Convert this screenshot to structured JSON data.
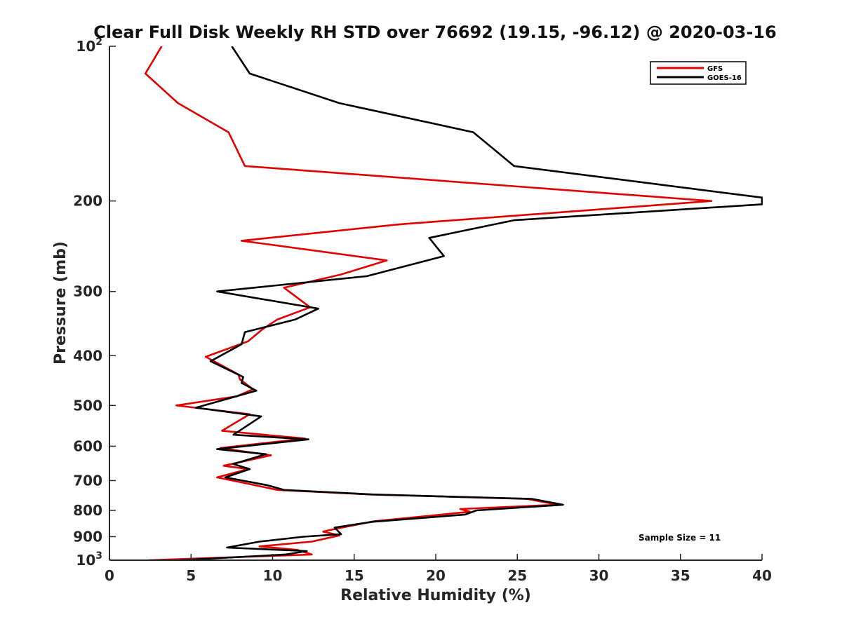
{
  "chart_data": {
    "type": "line",
    "title": "Clear Full Disk Weekly RH STD over 76692 (19.15, -96.12) @ 2020-03-16",
    "xlabel": "Relative Humidity (%)",
    "ylabel": "Pressure (mb)",
    "xlim": [
      0,
      40
    ],
    "ylim": [
      100,
      1000
    ],
    "yscale": "log",
    "y_reversed": true,
    "x_ticks": [
      0,
      5,
      10,
      15,
      20,
      25,
      30,
      35,
      40
    ],
    "x_tick_labels": [
      "0",
      "5",
      "10",
      "15",
      "20",
      "25",
      "30",
      "35",
      "40"
    ],
    "y_ticks": [
      100,
      200,
      300,
      400,
      500,
      600,
      700,
      800,
      900,
      1000
    ],
    "y_tick_labels": [
      {
        "base": "10",
        "exp": "2"
      },
      {
        "base": "200",
        "exp": ""
      },
      {
        "base": "300",
        "exp": ""
      },
      {
        "base": "400",
        "exp": ""
      },
      {
        "base": "500",
        "exp": ""
      },
      {
        "base": "600",
        "exp": ""
      },
      {
        "base": "700",
        "exp": ""
      },
      {
        "base": "800",
        "exp": ""
      },
      {
        "base": "900",
        "exp": ""
      },
      {
        "base": "10",
        "exp": "3"
      }
    ],
    "legend_position": "top-right",
    "annotation": "Sample Size = 11",
    "series": [
      {
        "name": "GFS",
        "color": "#e00000",
        "x": [
          3.2,
          2.2,
          4.2,
          7.3,
          8.3,
          36.9,
          17.8,
          8.1,
          17.0,
          14.2,
          10.7,
          12.3,
          10.3,
          9.4,
          8.5,
          5.9,
          7.9,
          8.0,
          8.8,
          7.8,
          4.1,
          8.6,
          6.9,
          12.0,
          6.8,
          9.9,
          7.0,
          8.5,
          6.6,
          8.5,
          10.3,
          16.0,
          25.6,
          27.5,
          21.5,
          22.1,
          16.2,
          13.4,
          13.1,
          14.1,
          12.4,
          9.2,
          11.5,
          12.4,
          2.4
        ],
        "y": [
          100,
          113,
          129,
          147,
          171,
          200,
          222,
          239,
          261,
          278,
          295,
          322,
          340,
          355,
          375,
          402,
          435,
          445,
          465,
          480,
          500,
          520,
          560,
          580,
          605,
          625,
          655,
          665,
          690,
          710,
          730,
          745,
          760,
          780,
          795,
          805,
          840,
          875,
          880,
          895,
          920,
          940,
          955,
          975,
          1000
        ]
      },
      {
        "name": "GOES-16",
        "color": "#000000",
        "x": [
          7.5,
          8.6,
          14.1,
          22.3,
          24.8,
          40.0,
          40.0,
          24.8,
          19.6,
          20.5,
          15.8,
          6.6,
          12.8,
          11.4,
          8.3,
          8.1,
          6.2,
          8.2,
          8.1,
          9.0,
          5.3,
          9.3,
          7.6,
          12.2,
          6.6,
          9.6,
          7.6,
          8.6,
          7.1,
          9.7,
          10.7,
          16.2,
          25.9,
          27.8,
          22.5,
          21.8,
          16.1,
          13.8,
          14.2,
          11.9,
          9.2,
          7.2,
          12.1,
          10.8,
          4.3
        ],
        "y": [
          100,
          113,
          129,
          147,
          171,
          197,
          203,
          218,
          236,
          256,
          280,
          300,
          324,
          340,
          360,
          380,
          410,
          440,
          452,
          468,
          505,
          525,
          570,
          582,
          608,
          622,
          650,
          665,
          690,
          715,
          730,
          745,
          760,
          780,
          800,
          815,
          842,
          864,
          890,
          900,
          920,
          945,
          960,
          975,
          1000
        ]
      }
    ]
  }
}
